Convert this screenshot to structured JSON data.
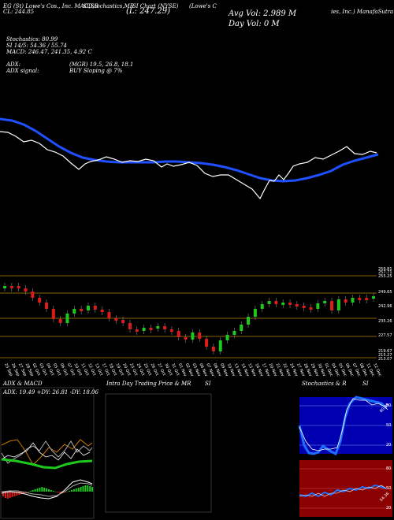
{
  "header": {
    "line1": "EG (St) Lowe's Cos., Inc. MACD,B",
    "line1_mid": "SI,Stochastics,MR",
    "line1_right": "SI Chart (NYSE)",
    "company": "(Lowe's C",
    "company2": "ies, Inc.) ManafaSutra.com",
    "price": "(L: 247.29)",
    "close": "CL: 244.85",
    "avg_vol": "Avg Vol: 2.989 M",
    "day_vol": "Day Vol: 0   M",
    "stoch": "Stochastics: 80.99",
    "rsi": "SI 14/5: 54.36  / 55.74",
    "macd": "MACD: 246.47, 241.35, 4.92  C",
    "adx": "ADX:",
    "adx_vals": "(MGR) 19.5, 26.8, 18.1",
    "adx_signal": "ADX signal:",
    "buy": "BUY Sloping @ 7%"
  },
  "price_axis": [
    "259.81",
    "257.71",
    "255.25",
    "249.65",
    "242.96",
    "235.26",
    "227.57",
    "219.67",
    "215.27",
    "213.07"
  ],
  "dates": [
    "25 Sep",
    "26 Sep",
    "27 Sep",
    "28 Sep",
    "02 Oct",
    "03 Oct",
    "04 Oct",
    "05 Oct",
    "06 Oct",
    "07 Oct",
    "10 Oct",
    "11 Oct",
    "12 Oct",
    "13 Oct",
    "17 Oct",
    "18 Oct",
    "19 Oct",
    "20 Oct",
    "23 Oct",
    "24 Oct",
    "25 Oct",
    "26 Oct",
    "27 Oct",
    "30 Oct",
    "31 Oct",
    "01 Nov",
    "02 Nov",
    "03 Nov",
    "06 Nov",
    "07 Nov",
    "08 Nov",
    "09 Nov",
    "10 Nov",
    "13 Nov",
    "14 Nov",
    "15 Nov",
    "16 Nov",
    "17 Nov",
    "20 Nov",
    "21 Nov",
    "22 Nov",
    "24 Nov",
    "27 Nov",
    "28 Nov",
    "29 Nov",
    "30 Nov",
    "01 Dec",
    "04 Dec",
    "05 Dec",
    "06 Dec",
    "07 Dec",
    "08 Dec",
    "11 Dec",
    "12 Dec"
  ],
  "panels": {
    "adx_title": "ADX & MACD",
    "adx_label": "ADX: 19.49 +DY: 26.81 -DY: 18.06",
    "intra_title": "Intra Day Trading Price & MR",
    "intra_title2": "SI",
    "stoch_title": "Stochastics & R",
    "stoch_title2": "SI",
    "stoch_axis": [
      "80",
      "50",
      "20"
    ],
    "rsi_axis": [
      "80",
      "50",
      "20"
    ],
    "stoch_value": "80.99",
    "rsi_value": "54.36"
  },
  "colors": {
    "ma": "#1f4fff",
    "price": "#ffffff",
    "up": "#1ec91e",
    "down": "#e01b1b",
    "level": "#b8860b",
    "rsi_bg": "#8b0000",
    "stoch_bg": "#0000b0"
  }
}
